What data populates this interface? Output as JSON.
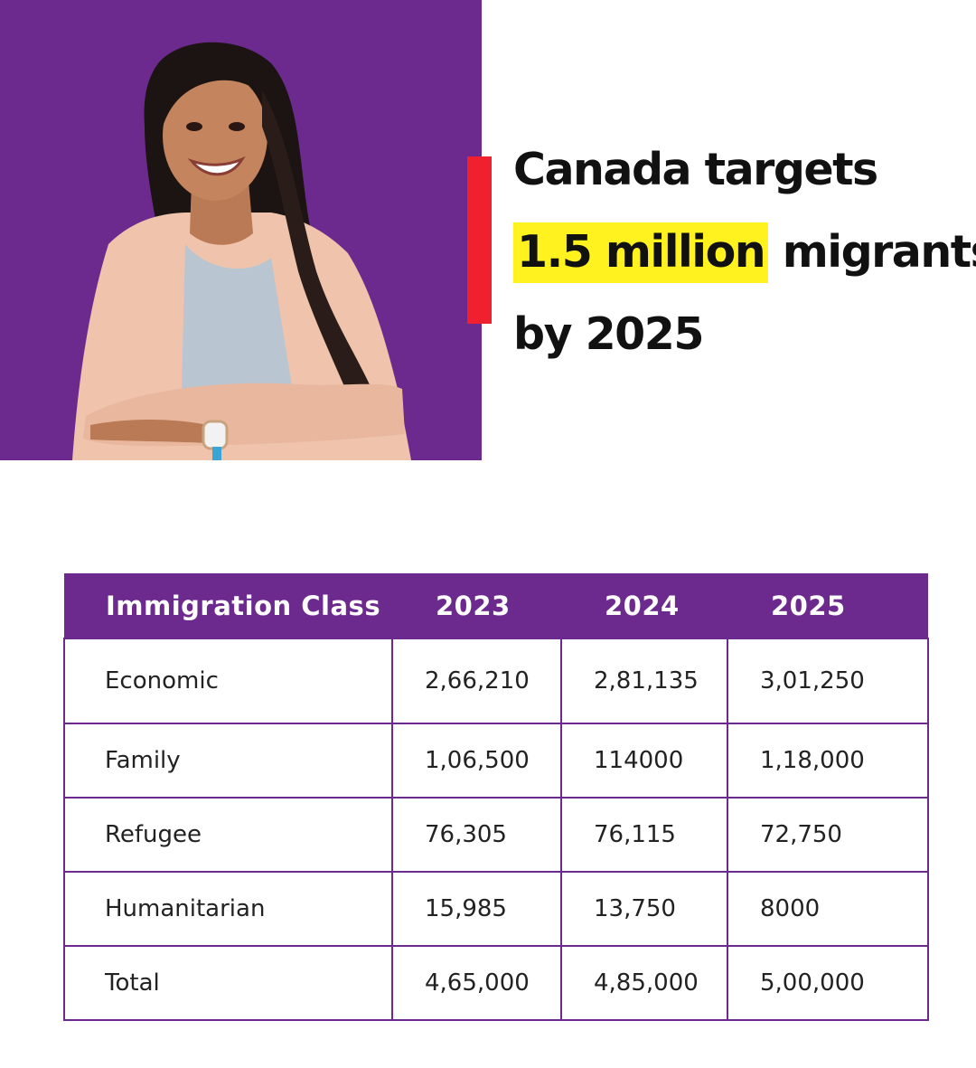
{
  "headline": {
    "line1": "Canada targets",
    "highlight": "1.5 million",
    "line2_rest": " migrants",
    "line3": "by 2025"
  },
  "colors": {
    "brand_purple": "#6c2a8f",
    "accent_red": "#f0202e",
    "highlight_yellow": "#fff21f"
  },
  "table": {
    "headers": [
      "Immigration Class",
      "2023",
      "2024",
      "2025"
    ],
    "rows": [
      [
        "Economic",
        "2,66,210",
        "2,81,135",
        "3,01,250"
      ],
      [
        "Family",
        "1,06,500",
        "114000",
        "1,18,000"
      ],
      [
        "Refugee",
        "76,305",
        "76,115",
        "72,750"
      ],
      [
        "Humanitarian",
        "15,985",
        "13,750",
        "8000"
      ],
      [
        "Total",
        "4,65,000",
        "4,85,000",
        "5,00,000"
      ]
    ]
  }
}
